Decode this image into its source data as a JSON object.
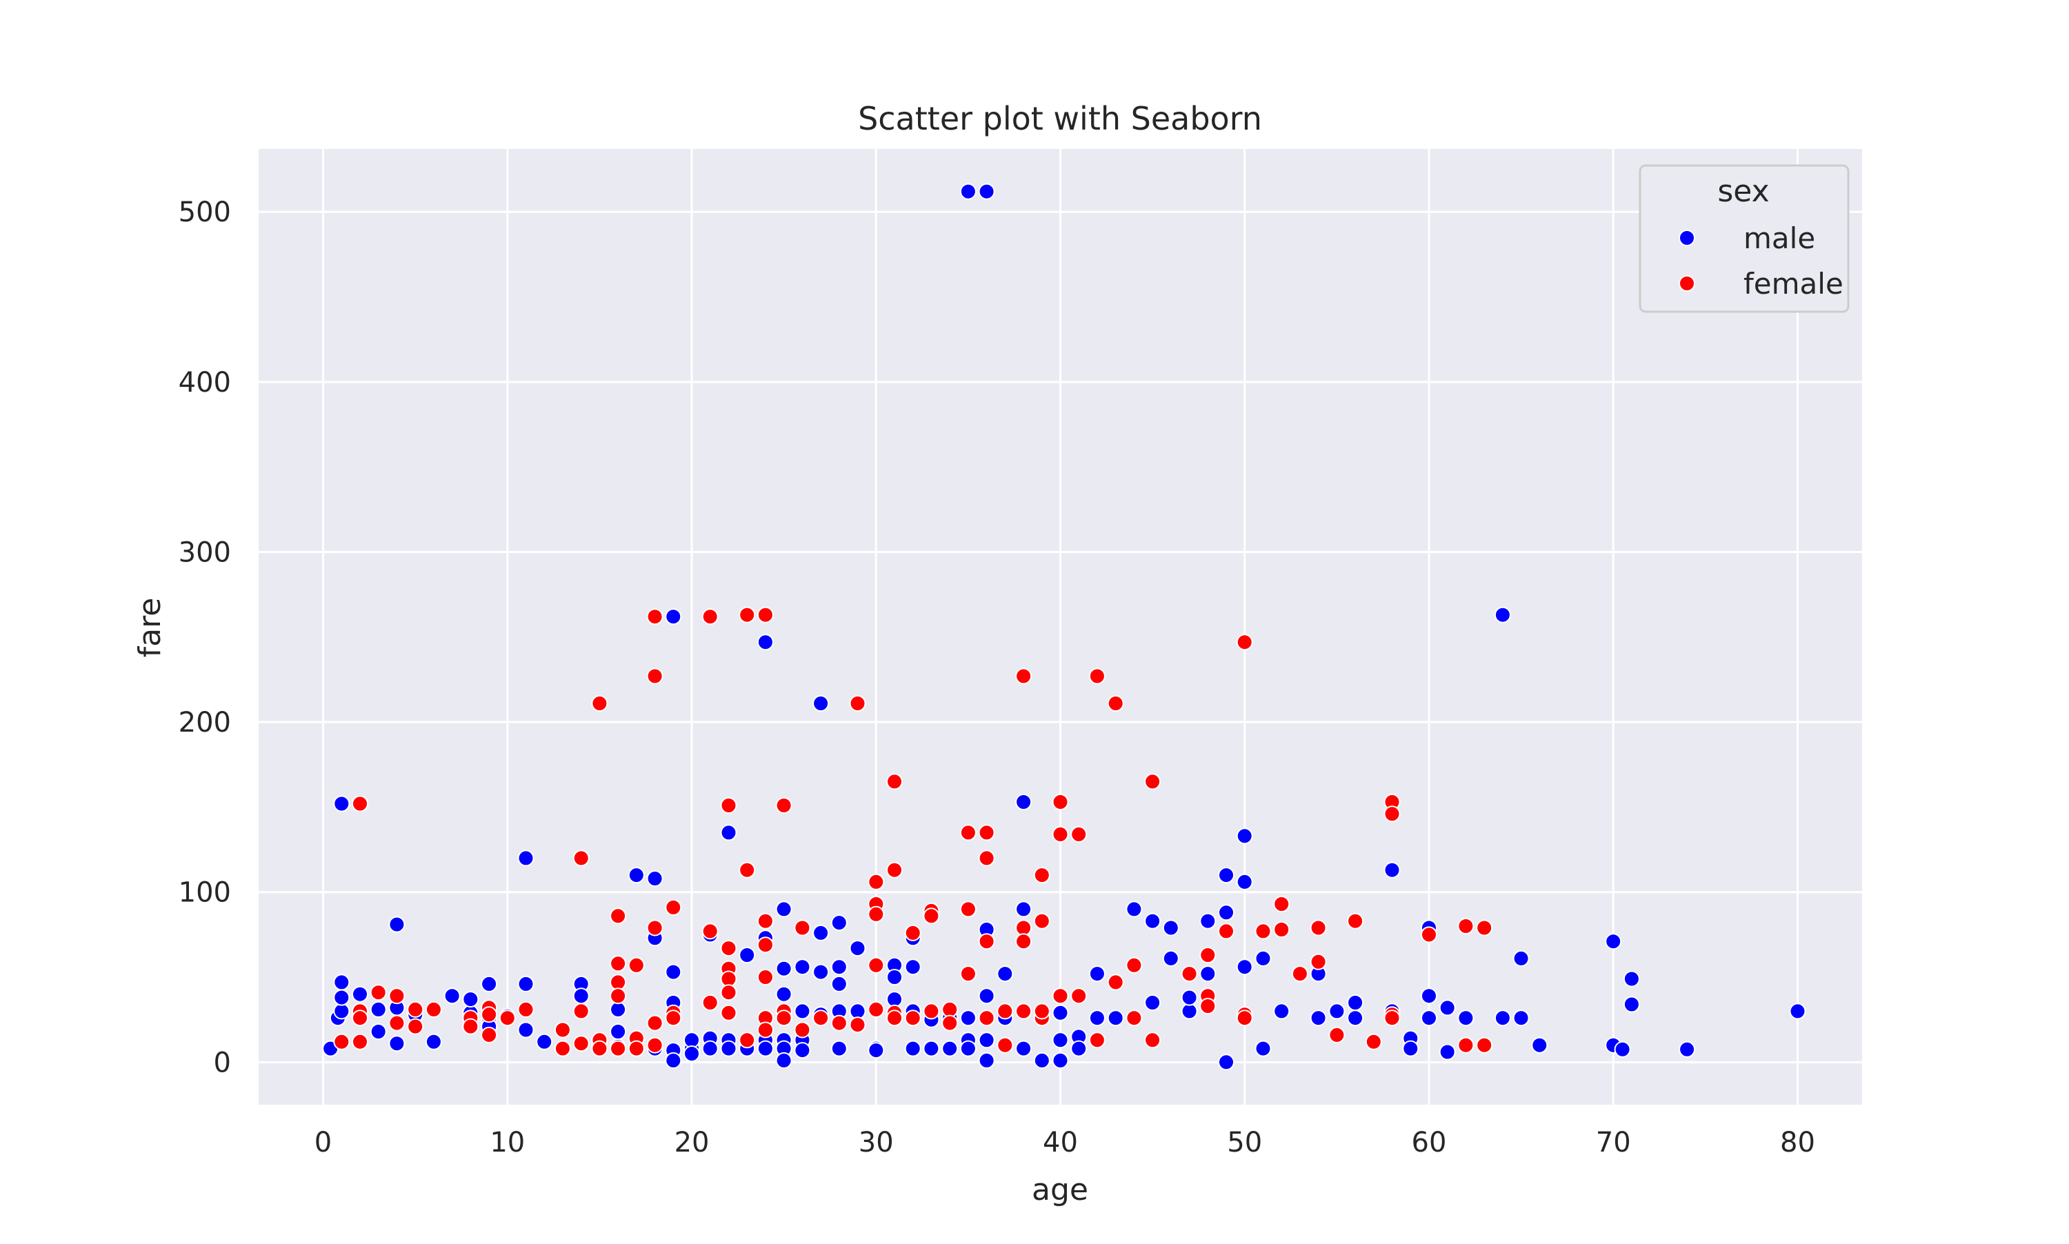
{
  "chart_data": {
    "type": "scatter",
    "title": "Scatter plot with Seaborn",
    "xlabel": "age",
    "ylabel": "fare",
    "xlim": [
      -3.5,
      83.5
    ],
    "ylim": [
      -25,
      537
    ],
    "xticks": [
      0,
      10,
      20,
      30,
      40,
      50,
      60,
      70,
      80
    ],
    "yticks": [
      0,
      100,
      200,
      300,
      400,
      500
    ],
    "grid": true,
    "legend": {
      "title": "sex",
      "placement": "top-right",
      "entries": [
        {
          "label": "male",
          "color": "#0000ff"
        },
        {
          "label": "female",
          "color": "#ff0000"
        }
      ]
    },
    "series": [
      {
        "name": "male",
        "color": "#0000ff",
        "x": [
          0.4,
          0.8,
          1,
          1,
          1,
          1,
          2,
          2,
          2,
          3,
          3,
          4,
          4,
          4,
          5,
          6,
          7,
          8,
          8,
          9,
          9,
          9,
          10,
          11,
          11,
          11,
          12,
          14,
          14,
          15,
          16,
          16,
          16,
          17,
          17,
          18,
          18,
          18,
          19,
          19,
          19,
          19,
          19,
          20,
          20,
          20,
          21,
          21,
          21,
          22,
          22,
          22,
          23,
          23,
          24,
          24,
          24,
          24,
          25,
          25,
          25,
          25,
          25,
          25,
          26,
          26,
          26,
          26,
          27,
          27,
          27,
          27,
          28,
          28,
          28,
          28,
          28,
          29,
          29,
          30,
          30,
          31,
          31,
          31,
          32,
          32,
          32,
          32,
          33,
          33,
          33,
          34,
          34,
          35,
          35,
          35,
          35,
          36,
          36,
          36,
          36,
          36,
          36,
          37,
          37,
          38,
          38,
          38,
          39,
          39,
          40,
          40,
          40,
          41,
          41,
          42,
          42,
          43,
          44,
          44,
          45,
          45,
          46,
          46,
          47,
          47,
          48,
          48,
          49,
          49,
          49,
          50,
          50,
          50,
          50,
          51,
          51,
          52,
          54,
          54,
          55,
          56,
          56,
          58,
          58,
          59,
          59,
          60,
          60,
          60,
          61,
          61,
          62,
          62,
          64,
          64,
          65,
          65,
          66,
          70,
          70,
          70.5,
          71,
          71,
          74,
          80
        ],
        "y": [
          8,
          26,
          152,
          30,
          47,
          38,
          40,
          29,
          28,
          31,
          18,
          81,
          32,
          11,
          28,
          12,
          39,
          29,
          37,
          46,
          26,
          21,
          27,
          120,
          46,
          19,
          12,
          46,
          39,
          10,
          31,
          9,
          18,
          110,
          8,
          108,
          73,
          8,
          262,
          53,
          35,
          7,
          1,
          8,
          13,
          5,
          75,
          14,
          8,
          135,
          13,
          8,
          63,
          8,
          247,
          73,
          13,
          8,
          90,
          55,
          40,
          13,
          8,
          1,
          56,
          30,
          13,
          7,
          211,
          76,
          53,
          28,
          82,
          56,
          46,
          30,
          8,
          67,
          30,
          8,
          7,
          57,
          50,
          37,
          73,
          56,
          30,
          8,
          30,
          25,
          8,
          26,
          8,
          512,
          26,
          13,
          8,
          512,
          78,
          39,
          26,
          13,
          1,
          52,
          26,
          153,
          90,
          8,
          26,
          1,
          29,
          13,
          1,
          15,
          8,
          52,
          26,
          26,
          90,
          26,
          83,
          35,
          79,
          61,
          30,
          38,
          83,
          52,
          110,
          88,
          0,
          133,
          106,
          56,
          26,
          61,
          8,
          30,
          26,
          52,
          30,
          35,
          26,
          113,
          30,
          14,
          8,
          79,
          39,
          26,
          32,
          6,
          26,
          10,
          263,
          26,
          61,
          26,
          10,
          71,
          10,
          7.5,
          49,
          34,
          7.5,
          30
        ]
      },
      {
        "name": "female",
        "color": "#ff0000",
        "x": [
          1,
          2,
          2,
          2,
          2,
          3,
          4,
          4,
          5,
          5,
          6,
          8,
          8,
          9,
          9,
          9,
          10,
          11,
          13,
          13,
          14,
          14,
          14,
          15,
          15,
          15,
          16,
          16,
          16,
          16,
          16,
          17,
          17,
          17,
          18,
          18,
          18,
          18,
          18,
          19,
          19,
          19,
          21,
          21,
          21,
          22,
          22,
          22,
          22,
          22,
          22,
          23,
          23,
          23,
          24,
          24,
          24,
          24,
          24,
          24,
          25,
          25,
          25,
          26,
          26,
          27,
          28,
          29,
          29,
          30,
          30,
          30,
          30,
          30,
          31,
          31,
          31,
          31,
          32,
          32,
          33,
          33,
          33,
          34,
          34,
          35,
          35,
          35,
          36,
          36,
          36,
          36,
          37,
          37,
          38,
          38,
          38,
          38,
          39,
          39,
          39,
          39,
          40,
          40,
          40,
          41,
          41,
          42,
          42,
          43,
          43,
          44,
          44,
          45,
          45,
          47,
          48,
          48,
          48,
          49,
          50,
          50,
          50,
          51,
          52,
          52,
          53,
          54,
          54,
          55,
          56,
          57,
          58,
          58,
          58,
          58,
          60,
          62,
          62,
          63,
          63
        ],
        "y": [
          12,
          152,
          30,
          26,
          12,
          41,
          39,
          23,
          31,
          21,
          31,
          26,
          21,
          32,
          28,
          16,
          26,
          31,
          19,
          8,
          120,
          30,
          11,
          211,
          13,
          8,
          86,
          58,
          47,
          39,
          8,
          57,
          14,
          8,
          262,
          227,
          79,
          23,
          10,
          91,
          29,
          26,
          262,
          77,
          35,
          151,
          67,
          55,
          49,
          41,
          29,
          113,
          263,
          13,
          263,
          83,
          69,
          50,
          26,
          19,
          151,
          30,
          26,
          79,
          19,
          26,
          23,
          211,
          22,
          106,
          93,
          87,
          57,
          31,
          165,
          113,
          29,
          26,
          76,
          26,
          89,
          86,
          30,
          31,
          23,
          135,
          90,
          52,
          135,
          120,
          71,
          26,
          30,
          10,
          227,
          79,
          71,
          30,
          110,
          83,
          26,
          30,
          153,
          134,
          39,
          134,
          39,
          227,
          13,
          211,
          47,
          57,
          26,
          165,
          13,
          52,
          63,
          39,
          33,
          77,
          247,
          28,
          26,
          77,
          93,
          78,
          52,
          79,
          59,
          16,
          83,
          12,
          153,
          146,
          28,
          26,
          75,
          80,
          10,
          79,
          10
        ]
      }
    ]
  }
}
